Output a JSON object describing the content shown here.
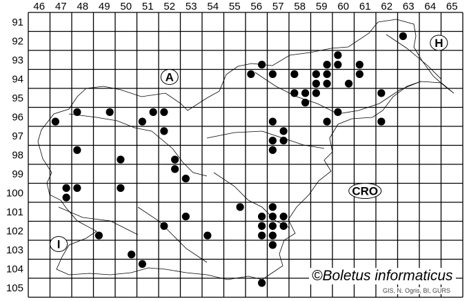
{
  "map": {
    "columns": [
      "46",
      "47",
      "48",
      "49",
      "50",
      "51",
      "52",
      "53",
      "54",
      "55",
      "56",
      "57",
      "58",
      "59",
      "60",
      "61",
      "62",
      "63",
      "64",
      "65"
    ],
    "rows": [
      "91",
      "92",
      "93",
      "94",
      "95",
      "96",
      "97",
      "98",
      "99",
      "100",
      "101",
      "102",
      "103",
      "104",
      "105"
    ],
    "country_labels": [
      {
        "text": "A",
        "col": 52.5,
        "row": 94.4
      },
      {
        "text": "H",
        "col": 64.9,
        "row": 92.6
      },
      {
        "text": "CRO",
        "col": 61.5,
        "row": 100.4
      },
      {
        "text": "I",
        "col": 47.4,
        "row": 103.2
      }
    ],
    "records": [
      [
        47.25,
        96.75
      ],
      [
        48.25,
        96.25
      ],
      [
        49.75,
        96.25
      ],
      [
        51.25,
        96.75
      ],
      [
        51.75,
        96.25
      ],
      [
        52.25,
        96.25
      ],
      [
        52.25,
        97.25
      ],
      [
        48.25,
        98.25
      ],
      [
        50.25,
        98.75
      ],
      [
        52.75,
        98.75
      ],
      [
        52.75,
        99.25
      ],
      [
        53.25,
        99.75
      ],
      [
        47.75,
        100.25
      ],
      [
        48.25,
        100.25
      ],
      [
        47.75,
        100.75
      ],
      [
        50.25,
        100.25
      ],
      [
        53.25,
        101.75
      ],
      [
        52.25,
        102.25
      ],
      [
        49.25,
        102.75
      ],
      [
        54.25,
        102.75
      ],
      [
        50.75,
        103.75
      ],
      [
        51.25,
        104.25
      ],
      [
        63.25,
        92.25
      ],
      [
        60.25,
        93.25
      ],
      [
        59.75,
        93.75
      ],
      [
        60.25,
        93.75
      ],
      [
        61.25,
        93.75
      ],
      [
        56.75,
        93.75
      ],
      [
        56.25,
        94.25
      ],
      [
        57.25,
        94.25
      ],
      [
        58.25,
        94.25
      ],
      [
        59.25,
        94.25
      ],
      [
        59.75,
        94.25
      ],
      [
        61.25,
        94.25
      ],
      [
        59.25,
        94.75
      ],
      [
        59.75,
        94.75
      ],
      [
        60.75,
        94.75
      ],
      [
        58.25,
        95.25
      ],
      [
        58.75,
        95.25
      ],
      [
        59.25,
        95.25
      ],
      [
        58.75,
        95.75
      ],
      [
        62.25,
        95.25
      ],
      [
        60.25,
        96.25
      ],
      [
        59.75,
        96.75
      ],
      [
        62.25,
        96.75
      ],
      [
        57.25,
        96.75
      ],
      [
        57.75,
        97.25
      ],
      [
        57.25,
        97.75
      ],
      [
        57.75,
        97.75
      ],
      [
        57.25,
        98.25
      ],
      [
        55.75,
        101.25
      ],
      [
        57.25,
        101.25
      ],
      [
        56.75,
        101.75
      ],
      [
        57.25,
        101.75
      ],
      [
        57.75,
        101.75
      ],
      [
        56.75,
        102.25
      ],
      [
        57.25,
        102.25
      ],
      [
        57.75,
        102.25
      ],
      [
        56.75,
        102.75
      ],
      [
        57.25,
        102.75
      ],
      [
        57.25,
        103.25
      ],
      [
        56.75,
        105.25
      ]
    ],
    "copyright": "©Boletus informaticus",
    "credits": "GIS, N. Ogris, BI, GURS"
  }
}
